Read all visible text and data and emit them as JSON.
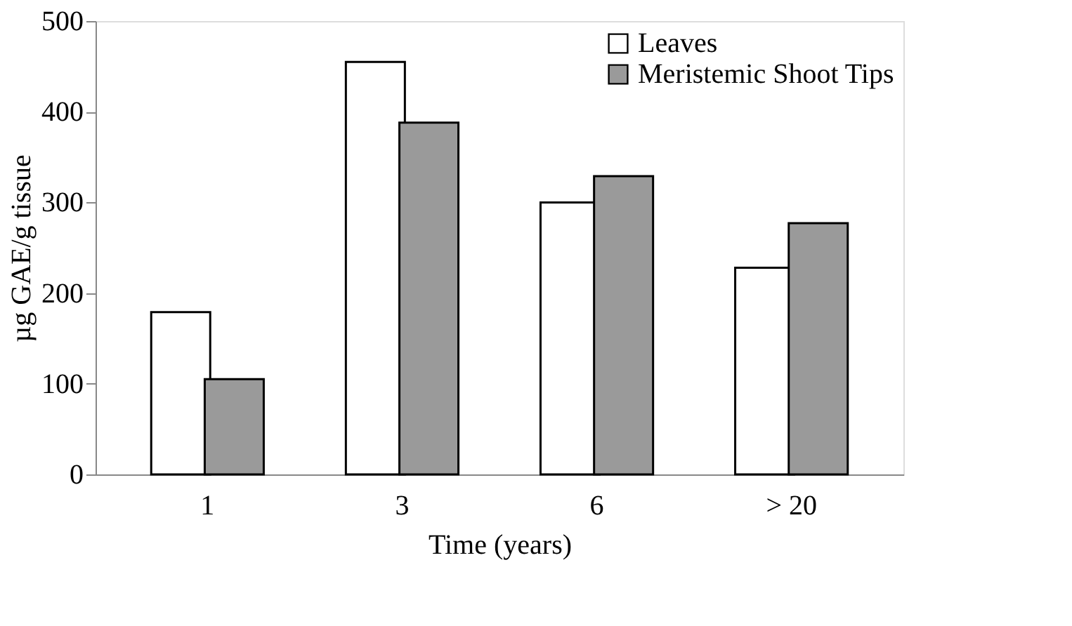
{
  "chart_data": {
    "type": "bar",
    "xlabel": "Time (years)",
    "ylabel": "µg GAE/g tissue",
    "categories": [
      "1",
      "3",
      "6",
      "> 20"
    ],
    "series": [
      {
        "name": "Leaves",
        "color": "#ffffff",
        "values": [
          179,
          455,
          300,
          228
        ]
      },
      {
        "name": "Meristemic Shoot Tips",
        "color": "#9a9a9a",
        "values": [
          105,
          388,
          329,
          277
        ]
      }
    ],
    "ylim": [
      0,
      500
    ],
    "yticks": [
      0,
      100,
      200,
      300,
      400,
      500
    ],
    "grid": false,
    "legend": "top right"
  }
}
